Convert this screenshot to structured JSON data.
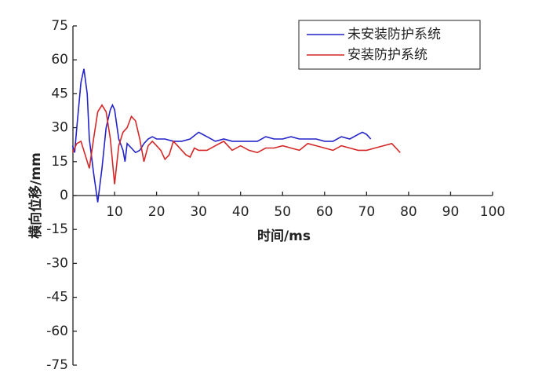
{
  "chart_data": {
    "type": "line",
    "x_label": "时间/ms",
    "y_label": "横向位移/mm",
    "xlim": [
      0,
      100
    ],
    "ylim": [
      -75,
      75
    ],
    "xticks": [
      10,
      20,
      30,
      40,
      50,
      60,
      70,
      80,
      90,
      100
    ],
    "yticks": [
      75,
      60,
      45,
      30,
      15,
      0,
      -15,
      -30,
      -45,
      -60,
      -75
    ],
    "legend": "upper right",
    "series": [
      {
        "name": "未安装防护系统",
        "color": "#2323c8",
        "x": [
          0,
          0.5,
          1,
          2,
          2.7,
          3.5,
          4,
          5,
          6,
          7,
          8,
          9,
          9.5,
          10,
          11,
          12,
          12.5,
          13,
          14,
          15,
          16,
          17,
          18,
          19,
          20,
          22,
          24,
          26,
          28,
          30,
          32,
          34,
          36,
          38,
          40,
          42,
          44,
          46,
          48,
          50,
          52,
          54,
          56,
          58,
          60,
          62,
          64,
          66,
          68,
          69,
          70,
          71
        ],
        "values": [
          22,
          19,
          30,
          50,
          56,
          45,
          25,
          10,
          -3,
          12,
          30,
          38,
          40,
          38,
          25,
          20,
          15,
          23,
          21,
          19,
          20,
          23,
          25,
          26,
          25,
          25,
          24,
          24,
          25,
          28,
          26,
          24,
          25,
          24,
          24,
          24,
          24,
          26,
          25,
          25,
          26,
          25,
          25,
          25,
          24,
          24,
          26,
          25,
          27,
          28,
          27,
          25
        ]
      },
      {
        "name": "安装防护系统",
        "color": "#d42828",
        "x": [
          0,
          1,
          2,
          3,
          4,
          5,
          6,
          7,
          8,
          9,
          10,
          11,
          12,
          13,
          14,
          15,
          16,
          17,
          18,
          19,
          20,
          21,
          22,
          23,
          24,
          25,
          26,
          27,
          28,
          29,
          30,
          32,
          34,
          36,
          38,
          40,
          42,
          44,
          46,
          48,
          50,
          52,
          54,
          56,
          58,
          60,
          62,
          64,
          66,
          68,
          70,
          72,
          74,
          76,
          78
        ],
        "values": [
          19,
          23,
          24,
          18,
          12,
          25,
          37,
          40,
          37,
          25,
          5,
          22,
          28,
          30,
          35,
          33,
          25,
          15,
          22,
          24,
          22,
          20,
          16,
          18,
          24,
          22,
          20,
          18,
          17,
          21,
          20,
          20,
          22,
          24,
          20,
          22,
          20,
          19,
          21,
          21,
          22,
          21,
          20,
          23,
          22,
          21,
          20,
          22,
          21,
          20,
          20,
          21,
          22,
          23,
          19
        ]
      }
    ]
  }
}
